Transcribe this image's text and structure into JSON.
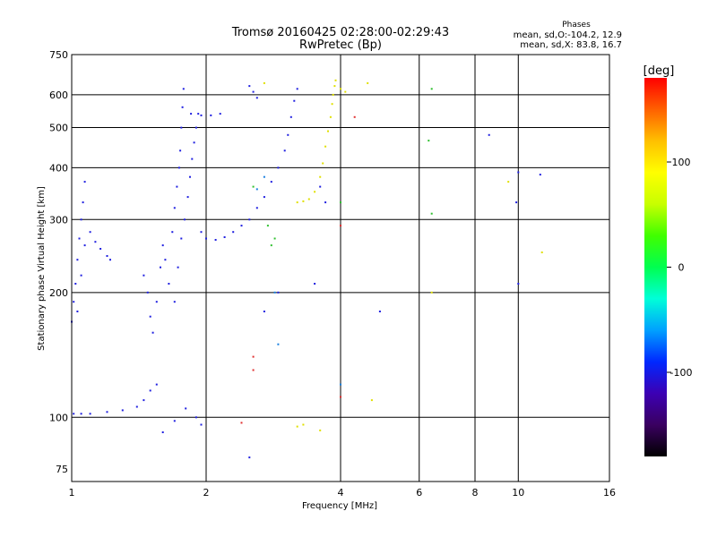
{
  "chart_data": {
    "type": "scatter",
    "title": "Tromsø 20160425 02:28:00-02:29:43",
    "subtitle": "RwPretec (Bp)",
    "phases_header": "Phases",
    "phases_lines": [
      "mean, sd,O:-104.2, 12.9",
      "mean, sd,X:  83.8, 16.7"
    ],
    "xlabel": "Frequency [MHz]",
    "ylabel": "Stationary phase Virtual Height [km]",
    "x_scale": "log",
    "y_scale": "log",
    "xlim": [
      1,
      16
    ],
    "ylim": [
      70,
      750
    ],
    "x_ticks": [
      1,
      2,
      4,
      6,
      8,
      10,
      16
    ],
    "y_ticks": [
      75,
      100,
      200,
      300,
      400,
      500,
      600,
      750
    ],
    "grid": true,
    "colorbar": {
      "label": "[deg]",
      "range": [
        -180,
        180
      ],
      "ticks": [
        100,
        0,
        -100
      ],
      "colors": [
        "#000000",
        "#3a0060",
        "#3c00b4",
        "#0028ff",
        "#00a0ff",
        "#00ffd8",
        "#00ff50",
        "#40ff00",
        "#c8ff00",
        "#ffff00",
        "#ffc000",
        "#ff6000",
        "#ff0000"
      ]
    },
    "series": [
      {
        "color": "#2020e0",
        "points": [
          [
            1.0,
            170
          ],
          [
            1.01,
            190
          ],
          [
            1.02,
            210
          ],
          [
            1.03,
            240
          ],
          [
            1.04,
            270
          ],
          [
            1.05,
            300
          ],
          [
            1.06,
            330
          ],
          [
            1.07,
            370
          ],
          [
            1.03,
            180
          ],
          [
            1.05,
            220
          ],
          [
            1.07,
            260
          ],
          [
            1.1,
            280
          ],
          [
            1.13,
            265
          ],
          [
            1.16,
            255
          ],
          [
            1.2,
            245
          ],
          [
            1.22,
            240
          ],
          [
            1.01,
            102
          ],
          [
            1.05,
            102
          ],
          [
            1.1,
            102
          ],
          [
            1.2,
            103
          ],
          [
            1.3,
            104
          ],
          [
            1.4,
            106
          ],
          [
            1.45,
            110
          ],
          [
            1.5,
            116
          ],
          [
            1.55,
            120
          ],
          [
            1.45,
            220
          ],
          [
            1.48,
            200
          ],
          [
            1.5,
            175
          ],
          [
            1.52,
            160
          ],
          [
            1.55,
            190
          ],
          [
            1.58,
            230
          ],
          [
            1.6,
            260
          ],
          [
            1.62,
            240
          ],
          [
            1.65,
            210
          ],
          [
            1.68,
            280
          ],
          [
            1.7,
            320
          ],
          [
            1.72,
            360
          ],
          [
            1.74,
            400
          ],
          [
            1.75,
            440
          ],
          [
            1.76,
            500
          ],
          [
            1.77,
            560
          ],
          [
            1.78,
            620
          ],
          [
            1.7,
            190
          ],
          [
            1.73,
            230
          ],
          [
            1.76,
            270
          ],
          [
            1.79,
            300
          ],
          [
            1.82,
            340
          ],
          [
            1.84,
            380
          ],
          [
            1.86,
            420
          ],
          [
            1.88,
            460
          ],
          [
            1.9,
            500
          ],
          [
            1.92,
            540
          ],
          [
            1.95,
            280
          ],
          [
            2.0,
            270
          ],
          [
            2.1,
            268
          ],
          [
            2.2,
            272
          ],
          [
            2.3,
            280
          ],
          [
            2.4,
            290
          ],
          [
            2.5,
            300
          ],
          [
            2.6,
            320
          ],
          [
            2.7,
            340
          ],
          [
            2.8,
            370
          ],
          [
            2.9,
            400
          ],
          [
            3.0,
            440
          ],
          [
            3.05,
            480
          ],
          [
            3.1,
            530
          ],
          [
            3.15,
            580
          ],
          [
            3.2,
            620
          ],
          [
            1.85,
            540
          ],
          [
            1.95,
            535
          ],
          [
            2.05,
            535
          ],
          [
            2.15,
            540
          ],
          [
            2.5,
            630
          ],
          [
            2.55,
            610
          ],
          [
            2.6,
            590
          ],
          [
            1.9,
            100
          ],
          [
            1.95,
            96
          ],
          [
            1.7,
            98
          ],
          [
            1.6,
            92
          ],
          [
            1.8,
            105
          ],
          [
            2.7,
            180
          ],
          [
            3.5,
            210
          ],
          [
            3.7,
            330
          ],
          [
            4.9,
            180
          ],
          [
            10.0,
            210
          ],
          [
            9.9,
            330
          ],
          [
            8.6,
            480
          ],
          [
            10.0,
            390
          ],
          [
            11.2,
            385
          ],
          [
            2.5,
            80
          ],
          [
            2.9,
            200
          ],
          [
            3.6,
            360
          ]
        ]
      },
      {
        "color": "#e0e000",
        "points": [
          [
            3.2,
            330
          ],
          [
            3.3,
            332
          ],
          [
            3.4,
            336
          ],
          [
            3.5,
            350
          ],
          [
            3.6,
            380
          ],
          [
            3.65,
            410
          ],
          [
            3.7,
            450
          ],
          [
            3.75,
            490
          ],
          [
            3.8,
            530
          ],
          [
            3.83,
            570
          ],
          [
            3.85,
            600
          ],
          [
            3.88,
            630
          ],
          [
            3.9,
            650
          ],
          [
            4.0,
            620
          ],
          [
            4.1,
            610
          ],
          [
            2.7,
            640
          ],
          [
            3.2,
            95
          ],
          [
            3.3,
            96
          ],
          [
            3.6,
            93
          ],
          [
            4.7,
            110
          ],
          [
            9.5,
            370
          ],
          [
            6.4,
            200
          ],
          [
            11.3,
            250
          ],
          [
            4.6,
            640
          ]
        ]
      },
      {
        "color": "#30c030",
        "points": [
          [
            2.8,
            260
          ],
          [
            2.75,
            290
          ],
          [
            2.85,
            270
          ],
          [
            6.3,
            465
          ],
          [
            6.4,
            310
          ],
          [
            2.55,
            360
          ],
          [
            4.0,
            330
          ],
          [
            6.4,
            620
          ]
        ]
      },
      {
        "color": "#1880e0",
        "points": [
          [
            2.6,
            355
          ],
          [
            2.85,
            200
          ],
          [
            2.7,
            380
          ],
          [
            2.9,
            150
          ],
          [
            4.0,
            120
          ]
        ]
      },
      {
        "color": "#e03030",
        "points": [
          [
            2.55,
            130
          ],
          [
            2.55,
            140
          ],
          [
            2.4,
            97
          ],
          [
            4.0,
            290
          ],
          [
            4.0,
            112
          ],
          [
            4.3,
            530
          ]
        ]
      }
    ]
  }
}
